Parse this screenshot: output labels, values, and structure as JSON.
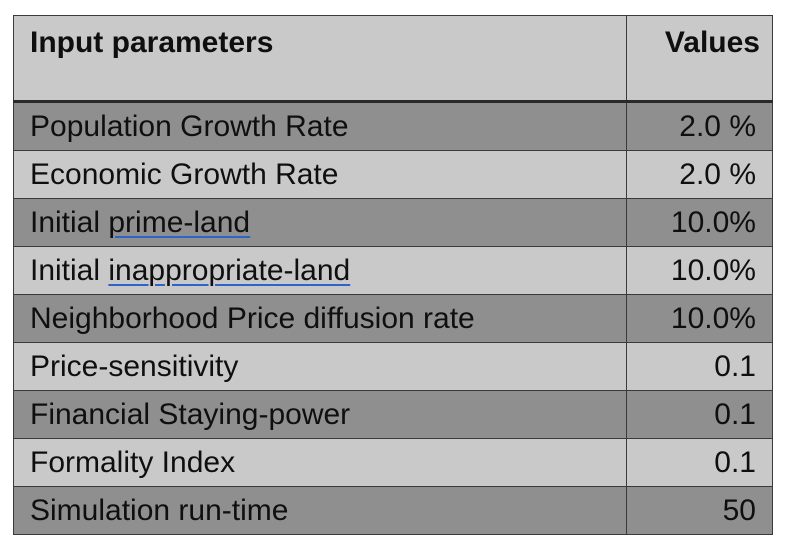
{
  "table": {
    "headers": {
      "parameter": "Input parameters",
      "value": "Values"
    },
    "rows": [
      {
        "prefix": "Population Growth Rate",
        "link": "",
        "value": "2.0 %"
      },
      {
        "prefix": "Economic Growth Rate",
        "link": "",
        "value": "2.0 %"
      },
      {
        "prefix": "Initial ",
        "link": "prime-land",
        "value": "10.0%"
      },
      {
        "prefix": "Initial ",
        "link": "inappropriate-land",
        "value": "10.0%"
      },
      {
        "prefix": "Neighborhood Price diffusion rate",
        "link": "",
        "value": "10.0%"
      },
      {
        "prefix": "Price-sensitivity",
        "link": "",
        "value": "0.1"
      },
      {
        "prefix": "Financial Staying-power",
        "link": "",
        "value": "0.1"
      },
      {
        "prefix": "Formality Index",
        "link": "",
        "value": "0.1"
      },
      {
        "prefix": "Simulation run-time",
        "link": "",
        "value": "50"
      }
    ]
  },
  "colors": {
    "header_bg": "#c9c9c9",
    "row_dark": "#8f8f8f",
    "row_light": "#c9c9c9",
    "underline": "#2f63c6"
  }
}
